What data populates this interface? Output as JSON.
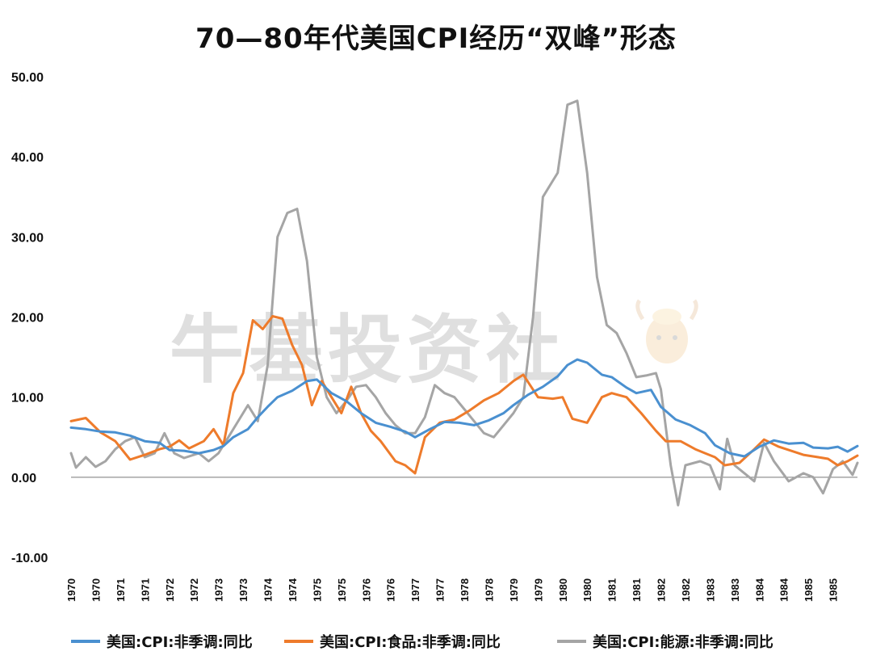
{
  "chart_data": {
    "type": "line",
    "title": "70—80年代美国CPI经历“双峰”形态",
    "ylim": [
      -10,
      50
    ],
    "ytick_labels": [
      "50.00",
      "40.00",
      "30.00",
      "20.00",
      "10.00",
      "0.00",
      "-10.00"
    ],
    "xtick_labels": [
      "1970",
      "1970",
      "1971",
      "1971",
      "1972",
      "1972",
      "1973",
      "1973",
      "1974",
      "1974",
      "1975",
      "1975",
      "1976",
      "1976",
      "1977",
      "1977",
      "1978",
      "1978",
      "1979",
      "1979",
      "1980",
      "1980",
      "1981",
      "1981",
      "1982",
      "1982",
      "1983",
      "1983",
      "1984",
      "1984",
      "1985",
      "1985"
    ],
    "grid": false,
    "legend_position": "bottom",
    "watermark": "牛基投资社",
    "series": [
      {
        "name": "美国:CPI:非季调:同比",
        "color": "#4a90d0",
        "points": [
          [
            1970.0,
            6.2
          ],
          [
            1970.3,
            6.0
          ],
          [
            1970.6,
            5.7
          ],
          [
            1970.9,
            5.6
          ],
          [
            1971.2,
            5.2
          ],
          [
            1971.5,
            4.5
          ],
          [
            1971.8,
            4.3
          ],
          [
            1972.0,
            3.4
          ],
          [
            1972.3,
            3.3
          ],
          [
            1972.6,
            3.0
          ],
          [
            1972.9,
            3.4
          ],
          [
            1973.1,
            3.9
          ],
          [
            1973.3,
            5.0
          ],
          [
            1973.6,
            6.0
          ],
          [
            1973.8,
            7.5
          ],
          [
            1974.0,
            8.8
          ],
          [
            1974.2,
            10.0
          ],
          [
            1974.5,
            10.8
          ],
          [
            1974.8,
            12.0
          ],
          [
            1975.0,
            12.2
          ],
          [
            1975.3,
            10.5
          ],
          [
            1975.6,
            9.5
          ],
          [
            1975.9,
            8.0
          ],
          [
            1976.2,
            6.8
          ],
          [
            1976.5,
            6.3
          ],
          [
            1976.8,
            5.7
          ],
          [
            1977.0,
            5.0
          ],
          [
            1977.3,
            6.0
          ],
          [
            1977.6,
            6.9
          ],
          [
            1977.9,
            6.8
          ],
          [
            1978.2,
            6.5
          ],
          [
            1978.5,
            7.1
          ],
          [
            1978.8,
            8.0
          ],
          [
            1979.0,
            9.0
          ],
          [
            1979.3,
            10.3
          ],
          [
            1979.6,
            11.3
          ],
          [
            1979.9,
            12.6
          ],
          [
            1980.1,
            14.0
          ],
          [
            1980.3,
            14.7
          ],
          [
            1980.5,
            14.3
          ],
          [
            1980.8,
            12.8
          ],
          [
            1981.0,
            12.5
          ],
          [
            1981.3,
            11.2
          ],
          [
            1981.5,
            10.5
          ],
          [
            1981.8,
            10.9
          ],
          [
            1982.0,
            8.8
          ],
          [
            1982.3,
            7.2
          ],
          [
            1982.6,
            6.5
          ],
          [
            1982.9,
            5.5
          ],
          [
            1983.1,
            4.0
          ],
          [
            1983.4,
            3.0
          ],
          [
            1983.7,
            2.6
          ],
          [
            1984.0,
            3.8
          ],
          [
            1984.3,
            4.6
          ],
          [
            1984.6,
            4.2
          ],
          [
            1984.9,
            4.3
          ],
          [
            1985.1,
            3.7
          ],
          [
            1985.4,
            3.6
          ],
          [
            1985.6,
            3.8
          ],
          [
            1985.8,
            3.2
          ],
          [
            1986.0,
            3.9
          ]
        ]
      },
      {
        "name": "美国:CPI:食品:非季调:同比",
        "color": "#ee7b2b",
        "points": [
          [
            1970.0,
            7.0
          ],
          [
            1970.3,
            7.4
          ],
          [
            1970.6,
            5.6
          ],
          [
            1970.9,
            4.5
          ],
          [
            1971.2,
            2.2
          ],
          [
            1971.5,
            2.8
          ],
          [
            1971.8,
            3.5
          ],
          [
            1972.0,
            3.8
          ],
          [
            1972.2,
            4.6
          ],
          [
            1972.4,
            3.6
          ],
          [
            1972.7,
            4.5
          ],
          [
            1972.9,
            6.0
          ],
          [
            1973.1,
            4.0
          ],
          [
            1973.3,
            10.5
          ],
          [
            1973.5,
            13.0
          ],
          [
            1973.7,
            19.6
          ],
          [
            1973.9,
            18.5
          ],
          [
            1974.1,
            20.1
          ],
          [
            1974.3,
            19.8
          ],
          [
            1974.5,
            16.5
          ],
          [
            1974.7,
            14.0
          ],
          [
            1974.9,
            9.0
          ],
          [
            1975.1,
            12.0
          ],
          [
            1975.3,
            10.0
          ],
          [
            1975.5,
            8.0
          ],
          [
            1975.7,
            11.3
          ],
          [
            1975.9,
            8.0
          ],
          [
            1976.1,
            5.8
          ],
          [
            1976.3,
            4.5
          ],
          [
            1976.6,
            2.0
          ],
          [
            1976.8,
            1.5
          ],
          [
            1977.0,
            0.5
          ],
          [
            1977.2,
            5.0
          ],
          [
            1977.5,
            6.8
          ],
          [
            1977.8,
            7.2
          ],
          [
            1978.1,
            8.3
          ],
          [
            1978.4,
            9.6
          ],
          [
            1978.7,
            10.5
          ],
          [
            1979.0,
            12.0
          ],
          [
            1979.2,
            12.8
          ],
          [
            1979.5,
            10.0
          ],
          [
            1979.8,
            9.8
          ],
          [
            1980.0,
            10.0
          ],
          [
            1980.2,
            7.3
          ],
          [
            1980.5,
            6.8
          ],
          [
            1980.8,
            10.0
          ],
          [
            1981.0,
            10.5
          ],
          [
            1981.3,
            10.0
          ],
          [
            1981.6,
            8.0
          ],
          [
            1981.9,
            5.8
          ],
          [
            1982.1,
            4.5
          ],
          [
            1982.4,
            4.5
          ],
          [
            1982.7,
            3.5
          ],
          [
            1982.9,
            3.0
          ],
          [
            1983.1,
            2.5
          ],
          [
            1983.3,
            1.5
          ],
          [
            1983.6,
            1.8
          ],
          [
            1983.9,
            3.5
          ],
          [
            1984.1,
            4.7
          ],
          [
            1984.4,
            3.8
          ],
          [
            1984.7,
            3.2
          ],
          [
            1984.9,
            2.8
          ],
          [
            1985.2,
            2.5
          ],
          [
            1985.4,
            2.3
          ],
          [
            1985.6,
            1.5
          ],
          [
            1985.8,
            2.0
          ],
          [
            1986.0,
            2.7
          ]
        ]
      },
      {
        "name": "美国:CPI:能源:非季调:同比",
        "color": "#a5a5a5",
        "points": [
          [
            1970.0,
            3.0
          ],
          [
            1970.1,
            1.2
          ],
          [
            1970.3,
            2.5
          ],
          [
            1970.5,
            1.3
          ],
          [
            1970.7,
            2.0
          ],
          [
            1970.9,
            3.5
          ],
          [
            1971.1,
            4.5
          ],
          [
            1971.3,
            5.0
          ],
          [
            1971.5,
            2.5
          ],
          [
            1971.7,
            3.0
          ],
          [
            1971.9,
            5.5
          ],
          [
            1972.1,
            3.0
          ],
          [
            1972.3,
            2.4
          ],
          [
            1972.6,
            3.0
          ],
          [
            1972.8,
            2.0
          ],
          [
            1973.0,
            3.0
          ],
          [
            1973.2,
            5.0
          ],
          [
            1973.4,
            7.0
          ],
          [
            1973.6,
            9.0
          ],
          [
            1973.8,
            7.0
          ],
          [
            1974.0,
            14.0
          ],
          [
            1974.2,
            30.0
          ],
          [
            1974.4,
            33.0
          ],
          [
            1974.6,
            33.5
          ],
          [
            1974.8,
            27.0
          ],
          [
            1975.0,
            15.0
          ],
          [
            1975.2,
            10.0
          ],
          [
            1975.4,
            8.0
          ],
          [
            1975.6,
            9.5
          ],
          [
            1975.8,
            11.3
          ],
          [
            1976.0,
            11.5
          ],
          [
            1976.2,
            10.0
          ],
          [
            1976.4,
            8.0
          ],
          [
            1976.6,
            6.5
          ],
          [
            1976.8,
            5.5
          ],
          [
            1977.0,
            5.5
          ],
          [
            1977.2,
            7.5
          ],
          [
            1977.4,
            11.5
          ],
          [
            1977.6,
            10.5
          ],
          [
            1977.8,
            10.0
          ],
          [
            1978.0,
            8.5
          ],
          [
            1978.2,
            7.0
          ],
          [
            1978.4,
            5.5
          ],
          [
            1978.6,
            5.0
          ],
          [
            1978.8,
            6.5
          ],
          [
            1979.0,
            8.0
          ],
          [
            1979.2,
            10.0
          ],
          [
            1979.4,
            20.0
          ],
          [
            1979.6,
            35.0
          ],
          [
            1979.8,
            37.0
          ],
          [
            1979.9,
            38.0
          ],
          [
            1980.1,
            46.5
          ],
          [
            1980.3,
            47.0
          ],
          [
            1980.5,
            38.0
          ],
          [
            1980.7,
            25.0
          ],
          [
            1980.9,
            19.0
          ],
          [
            1981.1,
            18.0
          ],
          [
            1981.3,
            15.5
          ],
          [
            1981.5,
            12.5
          ],
          [
            1981.7,
            12.7
          ],
          [
            1981.9,
            13.0
          ],
          [
            1982.0,
            11.0
          ],
          [
            1982.2,
            1.5
          ],
          [
            1982.35,
            -3.5
          ],
          [
            1982.5,
            1.5
          ],
          [
            1982.8,
            2.0
          ],
          [
            1983.0,
            1.5
          ],
          [
            1983.2,
            -1.5
          ],
          [
            1983.35,
            4.8
          ],
          [
            1983.5,
            1.5
          ],
          [
            1983.7,
            0.5
          ],
          [
            1983.9,
            -0.5
          ],
          [
            1984.1,
            4.3
          ],
          [
            1984.3,
            2.0
          ],
          [
            1984.6,
            -0.5
          ],
          [
            1984.9,
            0.5
          ],
          [
            1985.1,
            0.0
          ],
          [
            1985.3,
            -2.0
          ],
          [
            1985.5,
            1.0
          ],
          [
            1985.7,
            2.0
          ],
          [
            1985.9,
            0.3
          ],
          [
            1986.0,
            1.8
          ]
        ]
      }
    ]
  }
}
